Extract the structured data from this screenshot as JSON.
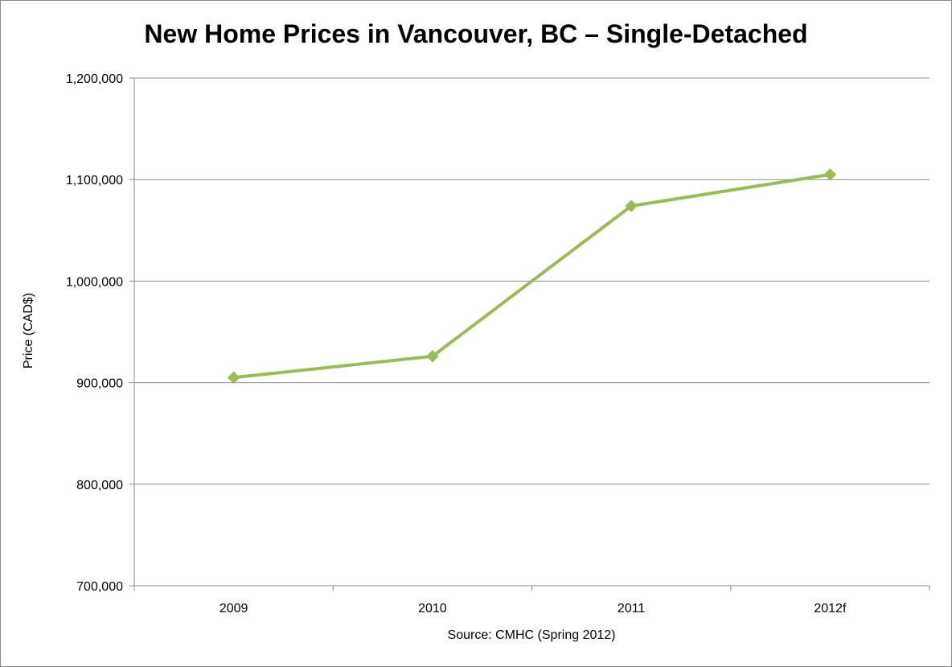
{
  "chart_data": {
    "type": "line",
    "title": "New Home Prices in Vancouver, BC – Single-Detached",
    "xlabel": "Source: CMHC (Spring 2012)",
    "ylabel": "Price (CAD$)",
    "categories": [
      "2009",
      "2010",
      "2011",
      "2012f"
    ],
    "series": [
      {
        "values": [
          905000,
          926000,
          1074000,
          1105000
        ],
        "color": "#9bbb59",
        "marker": "diamond"
      }
    ],
    "ylim": [
      700000,
      1200000
    ],
    "yticks": [
      700000,
      800000,
      900000,
      1000000,
      1100000,
      1200000
    ],
    "ytick_labels": [
      "700,000",
      "800,000",
      "900,000",
      "1,000,000",
      "1,100,000",
      "1,200,000"
    ],
    "grid": true,
    "legend": "none"
  }
}
